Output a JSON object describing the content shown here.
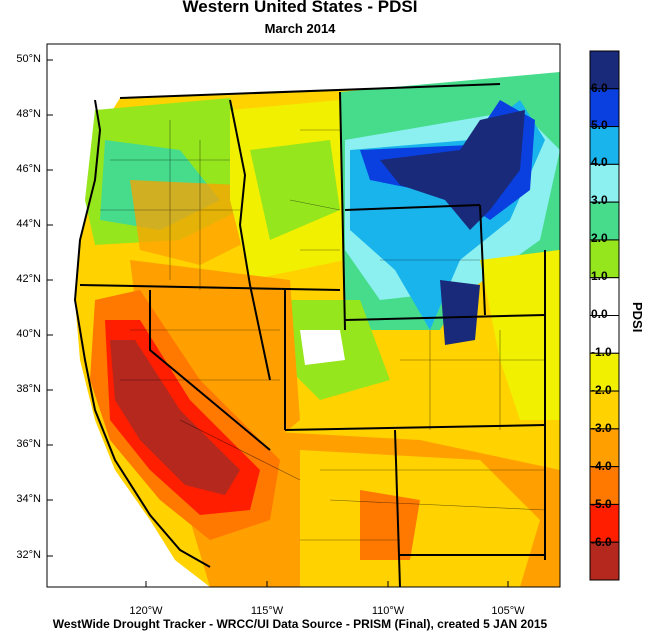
{
  "title": "Western United States - PDSI",
  "subtitle": "March 2014",
  "footer": "WestWide Drought Tracker - WRCC/UI  Data Source - PRISM (Final), created  5 JAN 2015",
  "map": {
    "lat_labels": [
      "50°N",
      "48°N",
      "46°N",
      "44°N",
      "42°N",
      "40°N",
      "38°N",
      "36°N",
      "34°N",
      "32°N"
    ],
    "lon_labels": [
      "120°W",
      "115°W",
      "110°W",
      "105°W"
    ]
  },
  "legend": {
    "title": "PDSI",
    "tick_labels": [
      "6.0",
      "5.0",
      "4.0",
      "3.0",
      "2.0",
      "1.0",
      "0.0",
      "-1.0",
      "-2.0",
      "-3.0",
      "-4.0",
      "-5.0",
      "-6.0"
    ],
    "colors": [
      "#1a2a7a",
      "#0a40e0",
      "#1ab4ec",
      "#8cf0f0",
      "#46dc8c",
      "#96e61e",
      "#ffffff",
      "#ffffff",
      "#f0f000",
      "#ffd200",
      "#ffa000",
      "#ff7800",
      "#ff1e00",
      "#b4281e"
    ]
  }
}
